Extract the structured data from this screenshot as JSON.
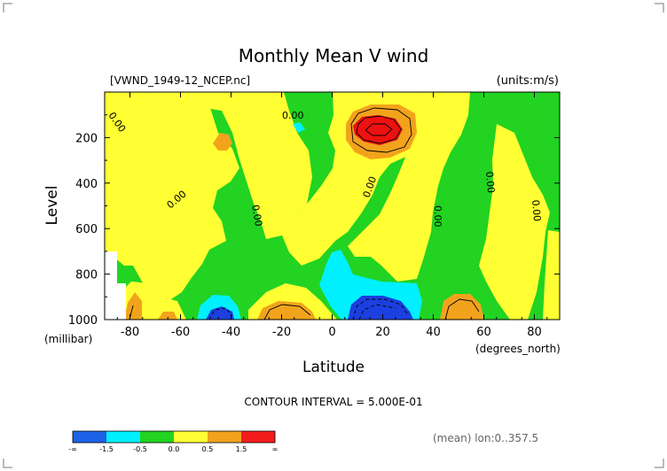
{
  "chart_data": {
    "type": "heatmap",
    "title": "Monthly Mean V wind",
    "file_label": "[VWND_1949-12_NCEP.nc]",
    "units_label": "(units:m/s)",
    "xlabel": "Latitude",
    "x_units": "(degrees_north)",
    "ylabel": "Level",
    "y_units": "(millibar)",
    "xlim": [
      -90,
      90
    ],
    "ylim": [
      1000,
      0
    ],
    "x_ticks": [
      "-80",
      "-60",
      "-40",
      "-20",
      "0",
      "20",
      "40",
      "60",
      "80"
    ],
    "y_ticks": [
      "200",
      "400",
      "600",
      "800",
      "1000"
    ],
    "contour_interval_label": "CONTOUR INTERVAL = 5.000E-01",
    "footer_label": "(mean) lon:0..357.5",
    "contour_line_labels": [
      "0.00",
      "0.00",
      "0.00",
      "0.00",
      "0.00",
      "0.00",
      "0.00"
    ],
    "colorbar": {
      "labels": [
        "-∞",
        "-1.5",
        "-0.5",
        "0.0",
        "0.5",
        "1.5",
        "∞"
      ],
      "colors": [
        "#1c62e6",
        "#00f0ff",
        "#22d322",
        "#ffff33",
        "#f2a31c",
        "#f21c1c"
      ]
    },
    "colors": {
      "strong_negative": "#1c3fe0",
      "negative": "#00f0ff",
      "near_zero_negative": "#22d322",
      "near_zero_positive": "#ffff33",
      "positive": "#f2a31c",
      "strong_positive": "#ee1111"
    }
  }
}
